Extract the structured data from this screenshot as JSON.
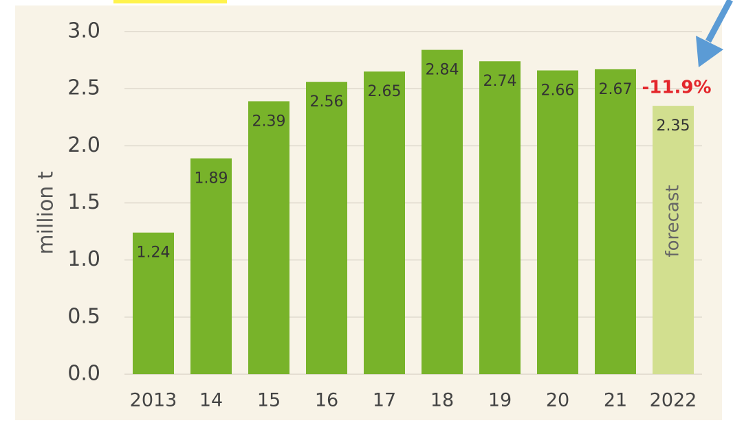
{
  "chart_data": {
    "type": "bar",
    "ylabel": "million t",
    "categories": [
      "2013",
      "14",
      "15",
      "16",
      "17",
      "18",
      "19",
      "20",
      "21",
      "2022"
    ],
    "values": [
      1.24,
      1.89,
      2.39,
      2.56,
      2.65,
      2.84,
      2.74,
      2.66,
      2.67,
      2.35
    ],
    "colors": [
      "#78b32a",
      "#78b32a",
      "#78b32a",
      "#78b32a",
      "#78b32a",
      "#78b32a",
      "#78b32a",
      "#78b32a",
      "#78b32a",
      "#d2df8f"
    ],
    "ylim": [
      0,
      3
    ],
    "yticks": [
      {
        "value": 0,
        "label": "0.0"
      },
      {
        "value": 0.5,
        "label": "0.5"
      },
      {
        "value": 1,
        "label": "1.0"
      },
      {
        "value": 1.5,
        "label": "1.5"
      },
      {
        "value": 2,
        "label": "2.0"
      },
      {
        "value": 2.5,
        "label": "2.5"
      },
      {
        "value": 3,
        "label": "3.0"
      }
    ],
    "grid": true,
    "annotations": [
      "-11.9%",
      "forecast"
    ]
  }
}
